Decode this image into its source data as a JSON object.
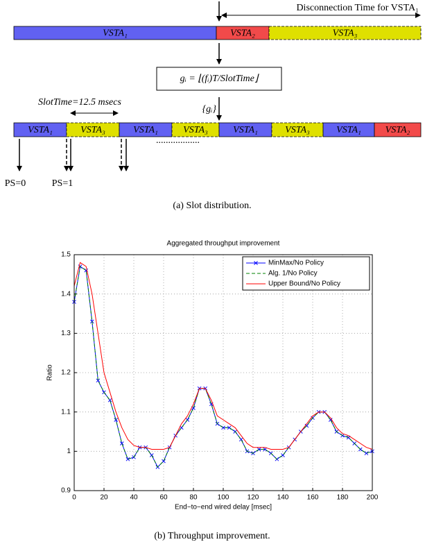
{
  "diagram": {
    "disconnection_label": "Disconnection Time for VSTA₁",
    "top_bar": [
      {
        "label": "VSTA₁",
        "color": "#6161f2"
      },
      {
        "label": "VSTA₂",
        "color": "#f24a4a"
      },
      {
        "label": "VSTA₃",
        "color": "#dfe000"
      }
    ],
    "formula": "gᵢ = ⌊(fᵢ)T/SlotTime⌋",
    "slot_time_label": "SlotTime=12.5 msecs",
    "g_set_label": "{gᵢ}",
    "slot_row": [
      {
        "label": "VSTA₁",
        "color": "#6161f2"
      },
      {
        "label": "VSTA₃",
        "color": "#dfe000"
      },
      {
        "label": "VSTA₁",
        "color": "#6161f2"
      },
      {
        "label": "VSTA₃",
        "color": "#dfe000"
      },
      {
        "label": "VSTA₁",
        "color": "#6161f2"
      },
      {
        "label": "VSTA₃",
        "color": "#dfe000"
      },
      {
        "label": "VSTA₁",
        "color": "#6161f2"
      },
      {
        "label": "VSTA₂",
        "color": "#f24a4a"
      }
    ],
    "ps_labels": [
      "PS=0",
      "PS=1"
    ],
    "ellipsis": "..................",
    "caption": "(a) Slot distribution."
  },
  "chart_data": {
    "type": "line",
    "title": "Aggregated throughput improvement",
    "x_label": "End−to−end wired delay [msec]",
    "y_label": "Ratio",
    "x": [
      0,
      4,
      8,
      12,
      16,
      20,
      24,
      28,
      32,
      36,
      40,
      44,
      48,
      52,
      56,
      60,
      64,
      68,
      72,
      76,
      80,
      84,
      88,
      92,
      96,
      100,
      104,
      108,
      112,
      116,
      120,
      124,
      128,
      132,
      136,
      140,
      144,
      148,
      152,
      156,
      160,
      164,
      168,
      172,
      176,
      180,
      184,
      188,
      192,
      196,
      200
    ],
    "series": [
      {
        "name": "MinMax/No Policy",
        "color": "#0000ff",
        "marker": "x",
        "values": [
          1.38,
          1.47,
          1.46,
          1.33,
          1.18,
          1.15,
          1.13,
          1.08,
          1.02,
          0.98,
          0.985,
          1.01,
          1.01,
          0.99,
          0.96,
          0.975,
          1.01,
          1.04,
          1.06,
          1.08,
          1.11,
          1.16,
          1.16,
          1.12,
          1.07,
          1.06,
          1.06,
          1.05,
          1.03,
          1.0,
          0.995,
          1.005,
          1.005,
          0.995,
          0.98,
          0.99,
          1.01,
          1.03,
          1.05,
          1.065,
          1.085,
          1.1,
          1.1,
          1.08,
          1.05,
          1.04,
          1.035,
          1.02,
          1.005,
          0.995,
          1.0
        ]
      },
      {
        "name": "Alg. 1/No Policy",
        "color": "#008000",
        "dash": true,
        "values": [
          1.38,
          1.47,
          1.46,
          1.33,
          1.18,
          1.15,
          1.13,
          1.08,
          1.02,
          0.98,
          0.985,
          1.01,
          1.01,
          0.99,
          0.96,
          0.975,
          1.01,
          1.04,
          1.06,
          1.08,
          1.11,
          1.16,
          1.16,
          1.12,
          1.07,
          1.06,
          1.06,
          1.05,
          1.03,
          1.0,
          0.995,
          1.005,
          1.005,
          0.995,
          0.98,
          0.99,
          1.01,
          1.03,
          1.05,
          1.065,
          1.085,
          1.1,
          1.1,
          1.08,
          1.05,
          1.04,
          1.035,
          1.02,
          1.005,
          0.995,
          1.0
        ]
      },
      {
        "name": "Upper Bound/No Policy",
        "color": "#ff0000",
        "values": [
          1.42,
          1.48,
          1.47,
          1.4,
          1.3,
          1.2,
          1.15,
          1.1,
          1.06,
          1.03,
          1.015,
          1.01,
          1.01,
          1.005,
          1.005,
          1.005,
          1.01,
          1.04,
          1.07,
          1.09,
          1.12,
          1.16,
          1.16,
          1.13,
          1.09,
          1.08,
          1.07,
          1.06,
          1.04,
          1.02,
          1.01,
          1.01,
          1.01,
          1.005,
          1.005,
          1.005,
          1.01,
          1.03,
          1.05,
          1.07,
          1.09,
          1.1,
          1.1,
          1.085,
          1.06,
          1.045,
          1.04,
          1.03,
          1.02,
          1.01,
          1.005
        ]
      }
    ],
    "xlim": [
      0,
      200
    ],
    "ylim": [
      0.9,
      1.5
    ],
    "xticks": [
      0,
      20,
      40,
      60,
      80,
      100,
      120,
      140,
      160,
      180,
      200
    ],
    "yticks": [
      0.9,
      1,
      1.1,
      1.2,
      1.3,
      1.4,
      1.5
    ],
    "grid": true,
    "legend": "upper right",
    "caption": "(b) Throughput improvement."
  }
}
